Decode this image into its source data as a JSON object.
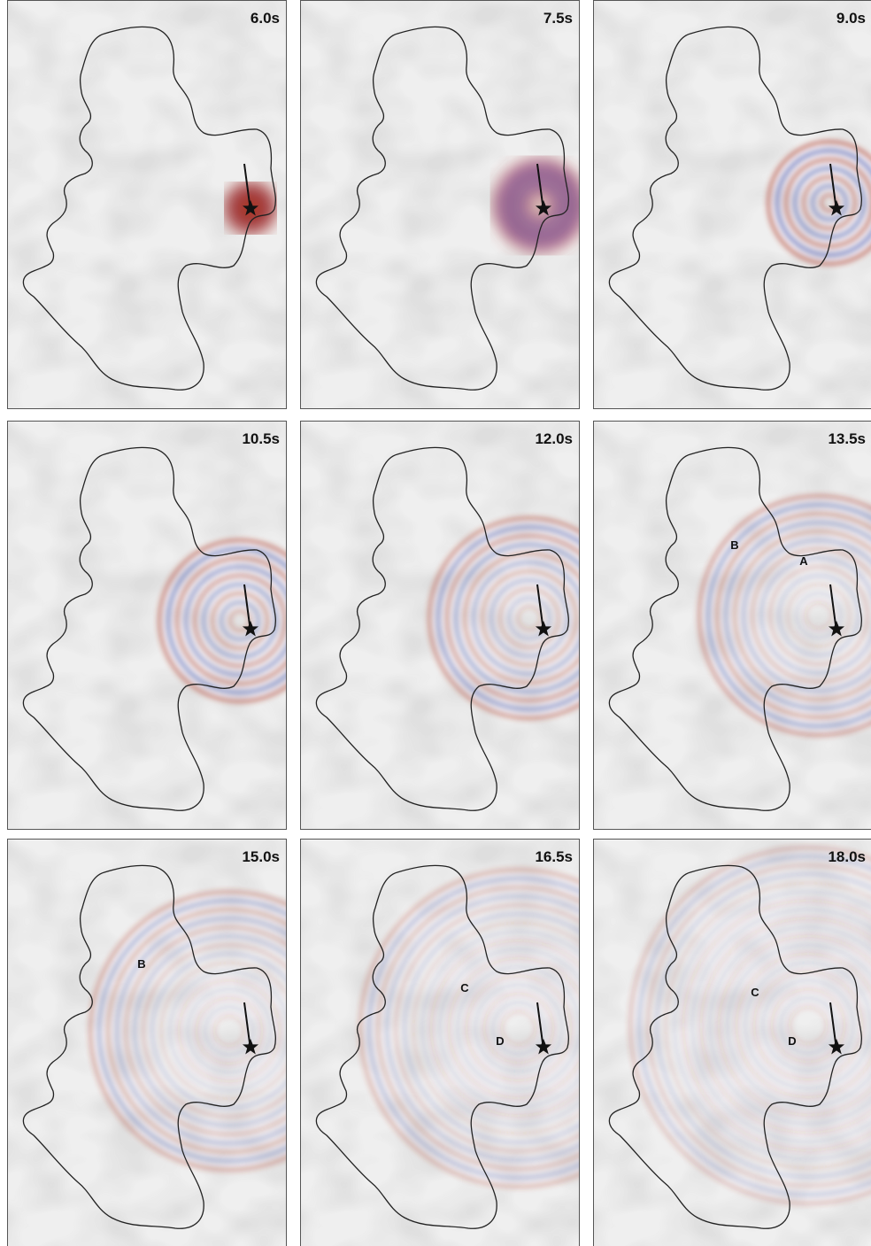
{
  "panels": [
    {
      "time": "6.0s"
    },
    {
      "time": "7.5s"
    },
    {
      "time": "9.0s"
    },
    {
      "time": "10.5s"
    },
    {
      "time": "12.0s"
    },
    {
      "time": "13.5s",
      "annotations": [
        "B",
        "A"
      ]
    },
    {
      "time": "15.0s",
      "annotations": [
        "B"
      ]
    },
    {
      "time": "16.5s",
      "annotations": [
        "C",
        "D"
      ]
    },
    {
      "time": "18.0s",
      "annotations": [
        "C",
        "D"
      ]
    }
  ]
}
